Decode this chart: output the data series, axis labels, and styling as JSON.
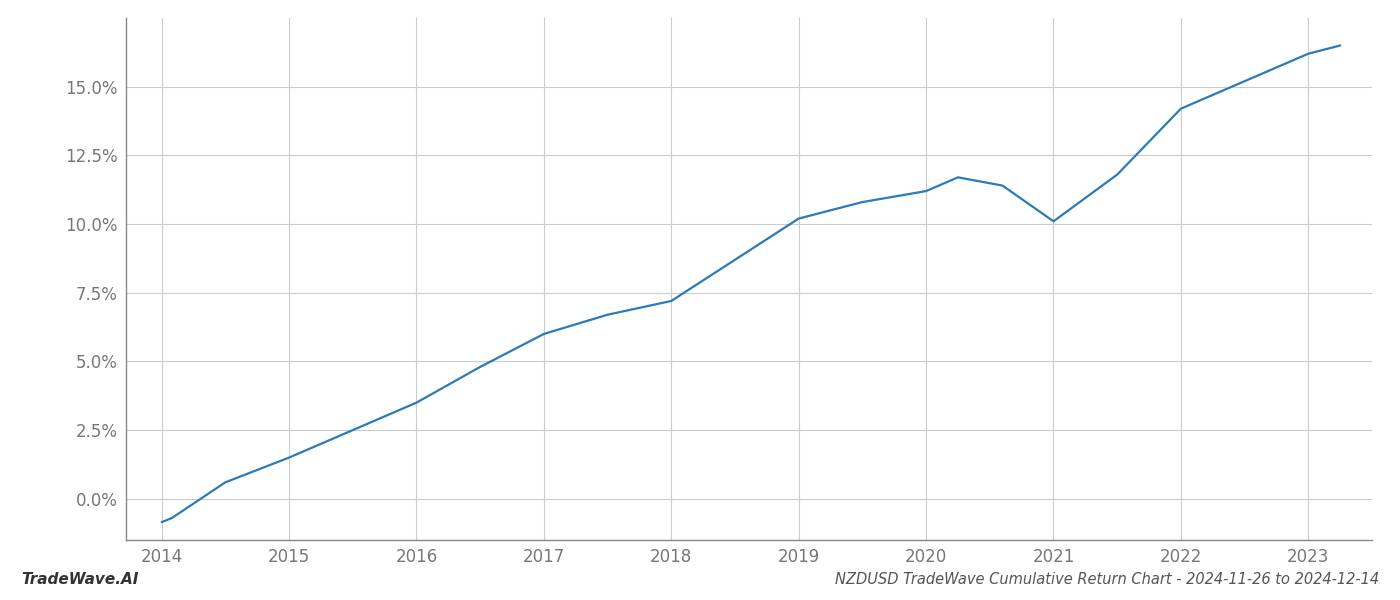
{
  "x": [
    2014.0,
    2014.08,
    2014.5,
    2015.0,
    2015.5,
    2016.0,
    2016.5,
    2017.0,
    2017.5,
    2018.0,
    2018.5,
    2019.0,
    2019.5,
    2020.0,
    2020.25,
    2020.6,
    2021.0,
    2021.5,
    2022.0,
    2022.5,
    2022.8,
    2023.0,
    2023.25
  ],
  "y": [
    -0.85,
    -0.7,
    0.6,
    1.5,
    2.5,
    3.5,
    4.8,
    6.0,
    6.7,
    7.2,
    8.7,
    10.2,
    10.8,
    11.2,
    11.7,
    11.4,
    10.1,
    11.8,
    14.2,
    15.2,
    15.8,
    16.2,
    16.5
  ],
  "line_color": "#2b7bba",
  "line_width": 1.6,
  "background_color": "#ffffff",
  "grid_color": "#cccccc",
  "title": "NZDUSD TradeWave Cumulative Return Chart - 2024-11-26 to 2024-12-14",
  "title_fontsize": 10.5,
  "watermark": "TradeWave.AI",
  "watermark_fontsize": 11,
  "xlim": [
    2013.72,
    2023.5
  ],
  "ylim": [
    -1.5,
    17.5
  ],
  "yticks": [
    0.0,
    2.5,
    5.0,
    7.5,
    10.0,
    12.5,
    15.0
  ],
  "xticks": [
    2014,
    2015,
    2016,
    2017,
    2018,
    2019,
    2020,
    2021,
    2022,
    2023
  ],
  "tick_fontsize": 12,
  "spine_color": "#888888"
}
